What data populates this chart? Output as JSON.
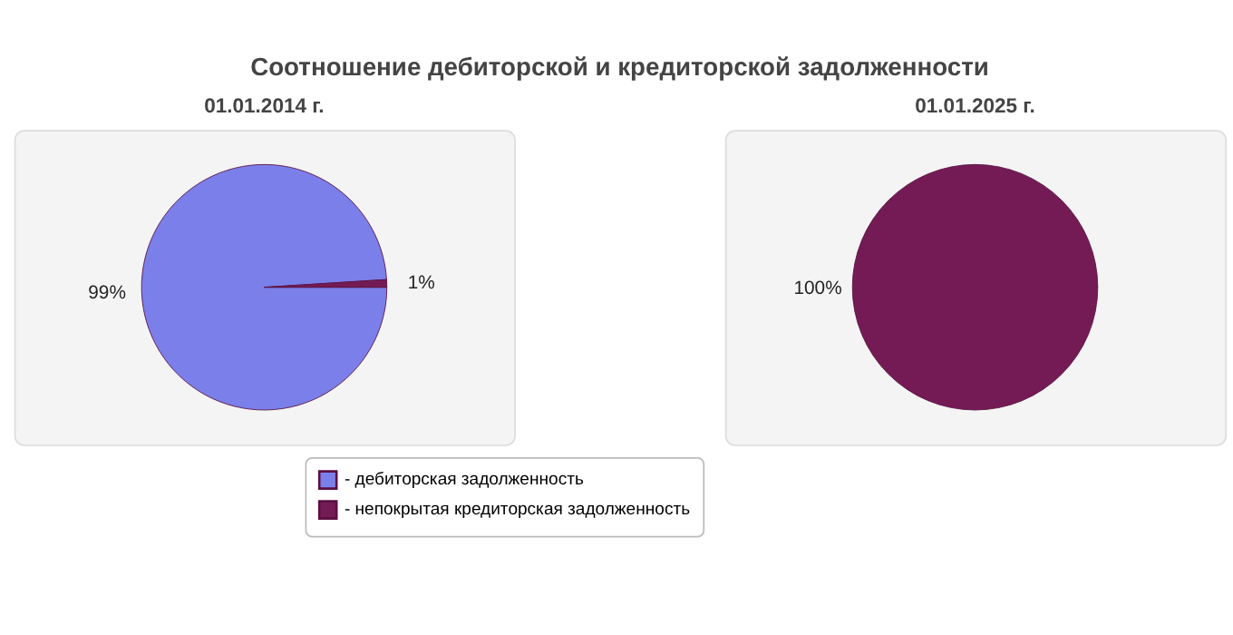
{
  "chart_data": [
    {
      "type": "pie",
      "title": "Соотношение дебиторской и кредиторской задолженности",
      "subtitle": "01.01.2014 г.",
      "categories": [
        "- дебиторская задолженность",
        "- непокрытая кредиторская задолженность"
      ],
      "values": [
        99,
        1
      ],
      "colors": [
        "#7b7fe9",
        "#741b55"
      ],
      "value_labels": [
        "99%",
        "1%"
      ],
      "legend": "bottom"
    },
    {
      "type": "pie",
      "subtitle": "01.01.2025 г.",
      "categories": [
        null,
        null
      ],
      "values": [
        0,
        100
      ],
      "colors": [
        "#7b7fe9",
        "#741b55"
      ],
      "value_labels": [
        null,
        "100%"
      ]
    }
  ]
}
